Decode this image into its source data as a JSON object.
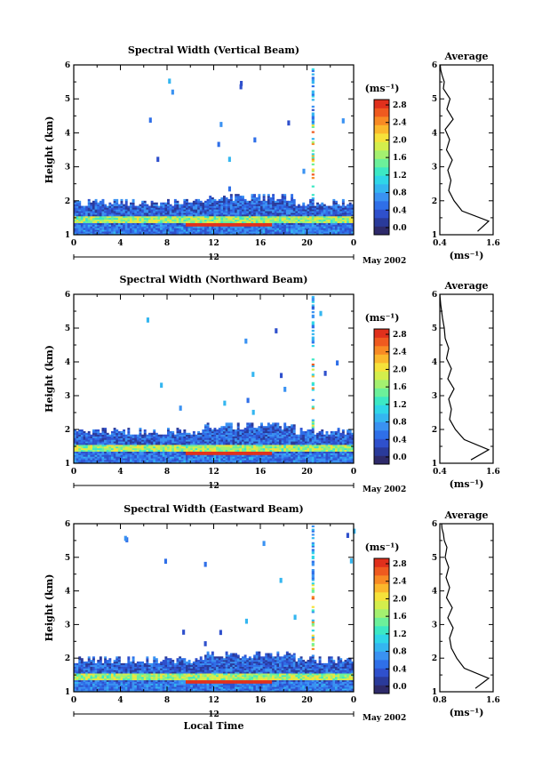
{
  "figure": {
    "date_label": "May 2002",
    "day_label": "12",
    "xlabel": "Local Time",
    "x_ticks": [
      "0",
      "4",
      "8",
      "12",
      "16",
      "20",
      "0"
    ],
    "y_ticks": [
      "1",
      "2",
      "3",
      "4",
      "5",
      "6"
    ],
    "colorbar_unit": "(ms⁻¹)",
    "colorbar_ticks": [
      "0.0",
      "0.4",
      "0.8",
      "1.2",
      "1.6",
      "2.0",
      "2.4",
      "2.8"
    ],
    "avg_title": "Average",
    "avg_unit": "(ms⁻¹)"
  },
  "chart_data": [
    {
      "type": "heatmap",
      "title": "Spectral Width (Vertical Beam)",
      "ylabel": "Height (km)",
      "xlim_hours": [
        0,
        24
      ],
      "ylim_km": [
        1,
        6
      ],
      "clim": [
        0,
        3.0
      ]
    },
    {
      "type": "line",
      "title": "Average",
      "xlabel": "(ms⁻¹)",
      "x_tick_labels": [
        "0.4",
        "1.6"
      ],
      "xlim": [
        0.4,
        1.6
      ],
      "ylim_km": [
        1,
        6
      ],
      "series": [
        {
          "x": [
            1.25,
            1.5,
            0.9,
            0.72,
            0.6,
            0.65,
            0.58,
            0.68,
            0.55,
            0.62,
            0.52,
            0.7,
            0.56,
            0.63,
            0.48,
            0.5,
            0.45,
            0.42,
            0.41
          ],
          "y": [
            1.1,
            1.4,
            1.7,
            2.0,
            2.3,
            2.6,
            2.9,
            3.2,
            3.5,
            3.8,
            4.1,
            4.4,
            4.7,
            5.0,
            5.3,
            5.5,
            5.7,
            5.85,
            6.0
          ]
        }
      ]
    },
    {
      "type": "heatmap",
      "title": "Spectral Width (Northward Beam)",
      "ylabel": "Height (km)",
      "xlim_hours": [
        0,
        24
      ],
      "ylim_km": [
        1,
        6
      ],
      "clim": [
        0,
        3.0
      ]
    },
    {
      "type": "line",
      "title": "Average",
      "xlabel": "(ms⁻¹)",
      "x_tick_labels": [
        "0.4",
        "1.6"
      ],
      "xlim": [
        0.4,
        1.6
      ],
      "ylim_km": [
        1,
        6
      ],
      "series": [
        {
          "x": [
            1.1,
            1.5,
            0.95,
            0.75,
            0.62,
            0.66,
            0.6,
            0.72,
            0.58,
            0.66,
            0.55,
            0.6,
            0.52,
            0.5,
            0.46,
            0.44,
            0.42,
            0.41,
            0.4
          ],
          "y": [
            1.1,
            1.4,
            1.7,
            2.0,
            2.3,
            2.6,
            2.9,
            3.2,
            3.5,
            3.8,
            4.1,
            4.4,
            4.7,
            5.0,
            5.3,
            5.5,
            5.7,
            5.85,
            6.0
          ]
        }
      ]
    },
    {
      "type": "heatmap",
      "title": "Spectral Width (Eastward Beam)",
      "ylabel": "Height (km)",
      "xlim_hours": [
        0,
        24
      ],
      "ylim_km": [
        1,
        6
      ],
      "clim": [
        0,
        3.0
      ]
    },
    {
      "type": "line",
      "title": "Average",
      "xlabel": "(ms⁻¹)",
      "x_tick_labels": [
        "0.8",
        "1.6"
      ],
      "xlim": [
        0.4,
        1.6
      ],
      "ylim_km": [
        1,
        6
      ],
      "series": [
        {
          "x": [
            1.2,
            1.5,
            0.95,
            0.78,
            0.66,
            0.62,
            0.7,
            0.58,
            0.68,
            0.55,
            0.62,
            0.54,
            0.6,
            0.52,
            0.56,
            0.5,
            0.48,
            0.45,
            0.44
          ],
          "y": [
            1.1,
            1.4,
            1.7,
            2.0,
            2.3,
            2.6,
            2.9,
            3.2,
            3.5,
            3.8,
            4.1,
            4.4,
            4.7,
            5.0,
            5.3,
            5.5,
            5.7,
            5.85,
            6.0
          ]
        }
      ]
    }
  ]
}
